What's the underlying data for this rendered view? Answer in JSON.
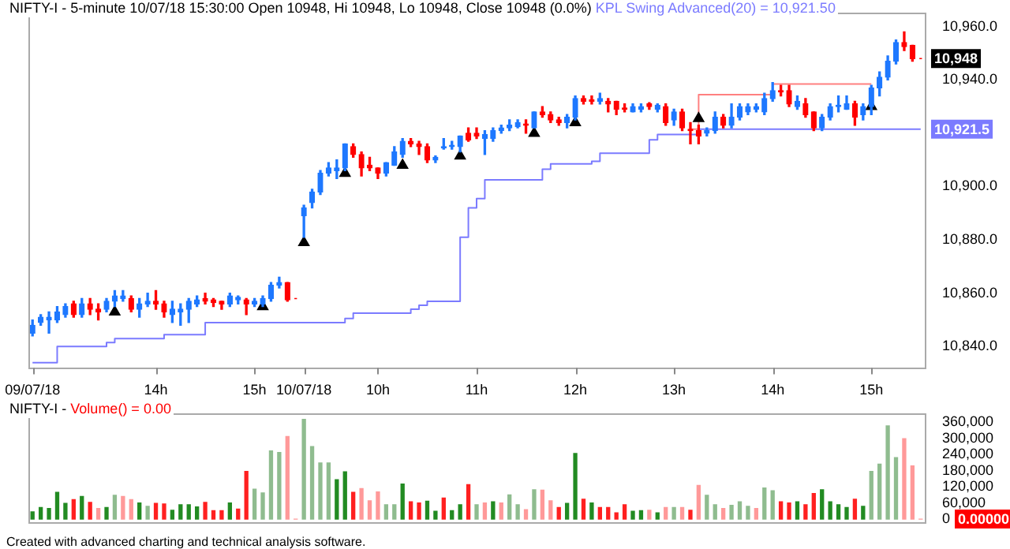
{
  "chart_data": [
    {
      "type": "candlestick",
      "title": "NIFTY-I - 5-minute 10/07/18 15:30:00 Open 10948, Hi 10948, Lo 10948, Close 10948 (0.0%)",
      "categories": [
        "09/07/18",
        null,
        null,
        null,
        null,
        null,
        null,
        null,
        null,
        null,
        null,
        null,
        null,
        null,
        null,
        "14h",
        null,
        null,
        null,
        null,
        null,
        null,
        null,
        null,
        null,
        null,
        null,
        "15h",
        null,
        null,
        null,
        null,
        null,
        "10/07/18",
        null,
        null,
        null,
        null,
        null,
        null,
        null,
        null,
        "10h",
        null,
        null,
        null,
        null,
        null,
        null,
        null,
        null,
        null,
        null,
        null,
        "11h",
        null,
        null,
        null,
        null,
        null,
        null,
        null,
        null,
        null,
        null,
        null,
        "12h",
        null,
        null,
        null,
        null,
        null,
        null,
        null,
        null,
        null,
        null,
        null,
        "13h",
        null,
        null,
        null,
        null,
        null,
        null,
        null,
        null,
        null,
        null,
        null,
        "14h",
        null,
        null,
        null,
        null,
        null,
        null,
        null,
        null,
        null,
        null,
        null,
        "15h",
        null,
        null,
        null,
        null,
        null,
        null
      ],
      "ohlc": [
        [
          10845,
          10850,
          10844,
          10848
        ],
        [
          10849,
          10852,
          10848,
          10851
        ],
        [
          10850,
          10853,
          10845,
          10851
        ],
        [
          10850,
          10855,
          10849,
          10853
        ],
        [
          10852,
          10856,
          10851,
          10855
        ],
        [
          10856,
          10857,
          10851,
          10852
        ],
        [
          10852,
          10858,
          10851,
          10856
        ],
        [
          10856,
          10858,
          10852,
          10854
        ],
        [
          10854,
          10856,
          10850,
          10853
        ],
        [
          10854,
          10858,
          10853,
          10857
        ],
        [
          10857,
          10861,
          10855,
          10859
        ],
        [
          10858,
          10861,
          10857,
          10859
        ],
        [
          10858,
          10859,
          10853,
          10854
        ],
        [
          10854,
          10858,
          10851,
          10856
        ],
        [
          10856,
          10860,
          10855,
          10857
        ],
        [
          10857,
          10861,
          10854,
          10856
        ],
        [
          10856,
          10857,
          10851,
          10853
        ],
        [
          10852,
          10857,
          10849,
          10854
        ],
        [
          10853,
          10856,
          10848,
          10854
        ],
        [
          10854,
          10858,
          10849,
          10857
        ],
        [
          10856,
          10859,
          10855,
          10857.5
        ],
        [
          10858,
          10860,
          10856,
          10857
        ],
        [
          10857.5,
          10858,
          10855,
          10856.5
        ],
        [
          10857,
          10857,
          10854,
          10856
        ],
        [
          10856,
          10860,
          10855,
          10859
        ],
        [
          10857.5,
          10859,
          10856,
          10858.5
        ],
        [
          10857.5,
          10858,
          10852,
          10856
        ],
        [
          10856,
          10858,
          10855,
          10857
        ],
        [
          10856,
          10859,
          10855,
          10858
        ],
        [
          10858,
          10864,
          10857,
          10863
        ],
        [
          10863,
          10866,
          10862,
          10864
        ],
        [
          10864,
          10864,
          10857,
          10857.5
        ],
        [
          10858,
          10858,
          10858,
          10858
        ],
        [
          10889,
          10893,
          10881,
          10892
        ],
        [
          10894,
          10899,
          10892,
          10898
        ],
        [
          10898,
          10906,
          10897,
          10905
        ],
        [
          10905,
          10909,
          10904,
          10907
        ],
        [
          10906,
          10910,
          10903,
          10907
        ],
        [
          10907,
          10916,
          10906,
          10916
        ],
        [
          10915,
          10916,
          10911,
          10912
        ],
        [
          10912,
          10913,
          10904,
          10907
        ],
        [
          10908,
          10911,
          10906,
          10907
        ],
        [
          10907,
          10907,
          10903,
          10905
        ],
        [
          10905,
          10909,
          10904,
          10909
        ],
        [
          10908,
          10915,
          10908,
          10913
        ],
        [
          10912,
          10918,
          10911,
          10917
        ],
        [
          10917,
          10918,
          10915,
          10916
        ],
        [
          10916,
          10917,
          10912,
          10915
        ],
        [
          10915,
          10916,
          10909,
          10910
        ],
        [
          10910,
          10911.5,
          10909,
          10911
        ],
        [
          10914.5,
          10918,
          10914,
          10915
        ],
        [
          10915,
          10917,
          10914,
          10915.5
        ],
        [
          10915,
          10919,
          10913,
          10919
        ],
        [
          10920,
          10922,
          10917,
          10917.5
        ],
        [
          10920,
          10922,
          10918,
          10919
        ],
        [
          10918,
          10921,
          10912,
          10919.5
        ],
        [
          10918,
          10922,
          10917,
          10921
        ],
        [
          10921,
          10923,
          10920,
          10922
        ],
        [
          10922,
          10925,
          10921,
          10923
        ],
        [
          10922.5,
          10925,
          10922,
          10924
        ],
        [
          10923.5,
          10925,
          10920,
          10923
        ],
        [
          10922,
          10928,
          10922,
          10928
        ],
        [
          10928,
          10930,
          10926,
          10927
        ],
        [
          10927,
          10928,
          10924,
          10925
        ],
        [
          10925,
          10926,
          10923,
          10924
        ],
        [
          10924,
          10927,
          10922,
          10926
        ],
        [
          10926,
          10934,
          10925,
          10933
        ],
        [
          10933,
          10934,
          10931,
          10932
        ],
        [
          10932.5,
          10934,
          10931,
          10932
        ],
        [
          10932,
          10935,
          10931,
          10933
        ],
        [
          10932,
          10933,
          10928,
          10931
        ],
        [
          10932,
          10932,
          10927,
          10929
        ],
        [
          10929.5,
          10931,
          10928,
          10929
        ],
        [
          10928,
          10931,
          10928,
          10930
        ],
        [
          10929,
          10931,
          10928,
          10930
        ],
        [
          10931,
          10931.5,
          10929,
          10930
        ],
        [
          10929,
          10931,
          10928,
          10930.5
        ],
        [
          10930,
          10931,
          10923,
          10924
        ],
        [
          10925,
          10929,
          10923,
          10928
        ],
        [
          10928,
          10929,
          10921,
          10922
        ],
        [
          10921.5,
          10924,
          10916,
          10921
        ],
        [
          10921,
          10923,
          10916,
          10919
        ],
        [
          10920,
          10922,
          10919,
          10921
        ],
        [
          10921,
          10928,
          10920,
          10926
        ],
        [
          10926,
          10927,
          10922,
          10923
        ],
        [
          10923,
          10931,
          10922,
          10926
        ],
        [
          10926,
          10931,
          10925,
          10930
        ],
        [
          10928,
          10931,
          10927,
          10930
        ],
        [
          10929,
          10931,
          10928,
          10930
        ],
        [
          10928,
          10935,
          10927,
          10933
        ],
        [
          10933,
          10939,
          10932,
          10936
        ],
        [
          10936,
          10938,
          10934,
          10935.5
        ],
        [
          10936,
          10938,
          10930,
          10931
        ],
        [
          10930,
          10934,
          10929,
          10932
        ],
        [
          10931,
          10933,
          10926,
          10927
        ],
        [
          10928,
          10928,
          10921,
          10922
        ],
        [
          10922,
          10927,
          10921,
          10926
        ],
        [
          10926,
          10931,
          10925,
          10930
        ],
        [
          10930,
          10934,
          10928,
          10930.5
        ],
        [
          10929,
          10934,
          10929,
          10931
        ],
        [
          10931,
          10932,
          10923,
          10926
        ],
        [
          10927,
          10931,
          10925,
          10930
        ],
        [
          10930,
          10938,
          10927,
          10937
        ],
        [
          10937,
          10943,
          10934,
          10941
        ],
        [
          10941,
          10949,
          10940,
          10947
        ],
        [
          10947,
          10955,
          10946,
          10954
        ],
        [
          10954,
          10958,
          10951,
          10952.5
        ],
        [
          10953,
          10953,
          10947,
          10948
        ],
        [
          10948,
          10948,
          10948,
          10948
        ]
      ],
      "colors": [
        "#1e78ff",
        "#1e78ff",
        "#1e78ff",
        "#1e78ff",
        "#1e78ff",
        "#ff0000",
        "#1e78ff",
        "#ff0000",
        "#ff0000",
        "#1e78ff",
        "#1e78ff",
        "#1e78ff",
        "#ff0000",
        "#1e78ff",
        "#1e78ff",
        "#ff0000",
        "#ff0000",
        "#1e78ff",
        "#1e78ff",
        "#1e78ff",
        "#1e78ff",
        "#ff0000",
        "#ff0000",
        "#ff0000",
        "#1e78ff",
        "#1e78ff",
        "#ff0000",
        "#1e78ff",
        "#1e78ff",
        "#1e78ff",
        "#1e78ff",
        "#ff0000",
        "#ff0000",
        "#1e78ff",
        "#1e78ff",
        "#1e78ff",
        "#1e78ff",
        "#1e78ff",
        "#1e78ff",
        "#ff0000",
        "#ff0000",
        "#ff0000",
        "#ff0000",
        "#1e78ff",
        "#1e78ff",
        "#1e78ff",
        "#ff0000",
        "#ff0000",
        "#ff0000",
        "#1e78ff",
        "#1e78ff",
        "#1e78ff",
        "#1e78ff",
        "#ff0000",
        "#ff0000",
        "#1e78ff",
        "#1e78ff",
        "#1e78ff",
        "#1e78ff",
        "#1e78ff",
        "#ff0000",
        "#1e78ff",
        "#ff0000",
        "#ff0000",
        "#ff0000",
        "#1e78ff",
        "#1e78ff",
        "#ff0000",
        "#ff0000",
        "#1e78ff",
        "#ff0000",
        "#ff0000",
        "#ff0000",
        "#1e78ff",
        "#1e78ff",
        "#ff0000",
        "#1e78ff",
        "#ff0000",
        "#1e78ff",
        "#ff0000",
        "#ff0000",
        "#ff0000",
        "#1e78ff",
        "#1e78ff",
        "#ff0000",
        "#1e78ff",
        "#1e78ff",
        "#1e78ff",
        "#1e78ff",
        "#1e78ff",
        "#1e78ff",
        "#ff0000",
        "#ff0000",
        "#1e78ff",
        "#ff0000",
        "#ff0000",
        "#1e78ff",
        "#1e78ff",
        "#1e78ff",
        "#1e78ff",
        "#ff0000",
        "#1e78ff",
        "#1e78ff",
        "#1e78ff",
        "#1e78ff",
        "#1e78ff",
        "#ff0000",
        "#ff0000",
        "#ff0000"
      ],
      "series": [
        {
          "type": "step",
          "name": "KPL Swing Advanced(20) = 10,921.50",
          "color": "#7b7bff",
          "values": [
            10834,
            10834,
            10834,
            10840,
            10840,
            10840,
            10840,
            10840,
            10840,
            10841.5,
            10843,
            10843,
            10843,
            10843,
            10843,
            10843,
            10844.5,
            10844.5,
            10844.5,
            10844.5,
            10844.5,
            10849,
            10849,
            10849,
            10849,
            10849,
            10849,
            10849,
            10849,
            10849,
            10849,
            10849,
            10849,
            10849,
            10849,
            10849,
            10849,
            10849,
            10850.5,
            10852.5,
            10852.5,
            10852.5,
            10852.5,
            10852.5,
            10852.5,
            10852.5,
            10854,
            10855.5,
            10857,
            10857,
            10857,
            10857,
            10881,
            10892,
            10895.5,
            10902.5,
            10902.5,
            10902.5,
            10902.5,
            10902.5,
            10902.5,
            10902.5,
            10906.5,
            10908.5,
            10908.5,
            10908.5,
            10908.5,
            10908.5,
            10909.5,
            10912.5,
            10912.5,
            10912.5,
            10912.5,
            10912.5,
            10912.5,
            10917.5,
            10919.5,
            10919.5,
            10919.5,
            10919.5,
            10919.5,
            10921.5,
            10921.5,
            10921.5,
            10921.5,
            10921.5,
            10921.5,
            10921.5,
            10921.5,
            10921.5,
            10921.5,
            10921.5,
            10921.5,
            10921.5,
            10921.5,
            10921.5,
            10921.5,
            10921.5,
            10921.5,
            10921.5,
            10921.5,
            10921.5,
            10921.5,
            10921.5,
            10921.5,
            10921.5,
            10921.5,
            10921.5,
            10921.5
          ]
        },
        {
          "type": "step",
          "color": "#ff8080",
          "values": [
            null,
            null,
            null,
            null,
            null,
            null,
            null,
            null,
            null,
            null,
            null,
            null,
            null,
            null,
            null,
            null,
            null,
            null,
            null,
            null,
            null,
            null,
            null,
            null,
            null,
            null,
            null,
            null,
            null,
            null,
            null,
            null,
            null,
            null,
            null,
            null,
            null,
            null,
            null,
            null,
            null,
            null,
            null,
            null,
            null,
            null,
            null,
            null,
            null,
            null,
            null,
            null,
            null,
            null,
            null,
            null,
            null,
            null,
            null,
            null,
            null,
            null,
            null,
            null,
            null,
            null,
            null,
            null,
            null,
            null,
            null,
            null,
            null,
            null,
            null,
            null,
            null,
            null,
            null,
            null,
            10921.5,
            10934.5,
            10934.5,
            10934.5,
            10934.5,
            10934.5,
            10934.5,
            10934.5,
            10934.5,
            10934.5,
            10938.5,
            10938.5,
            10938.5,
            10938.5,
            10938.5,
            10938.5,
            10938.5,
            10938.5,
            10938.5,
            10938.5,
            10938.5,
            10938.5,
            10938.5,
            null,
            null,
            null,
            null,
            null,
            null
          ]
        },
        {
          "type": "scatter",
          "marker": "triangle",
          "color": "#000000",
          "values": [
            null,
            null,
            null,
            null,
            null,
            null,
            null,
            null,
            null,
            null,
            10853,
            null,
            null,
            null,
            null,
            null,
            null,
            null,
            null,
            null,
            null,
            null,
            null,
            null,
            null,
            null,
            null,
            null,
            10855,
            null,
            null,
            null,
            null,
            10879,
            null,
            null,
            null,
            null,
            10905,
            null,
            null,
            null,
            null,
            null,
            null,
            10908,
            null,
            null,
            null,
            null,
            null,
            null,
            10911.5,
            null,
            null,
            null,
            null,
            null,
            null,
            null,
            null,
            10920,
            null,
            null,
            null,
            null,
            10924,
            null,
            null,
            null,
            null,
            null,
            null,
            null,
            null,
            null,
            null,
            null,
            null,
            null,
            null,
            10925.5,
            null,
            null,
            null,
            null,
            null,
            null,
            null,
            null,
            null,
            null,
            null,
            null,
            null,
            null,
            null,
            null,
            null,
            null,
            null,
            null,
            10930,
            null,
            null,
            null,
            null,
            null,
            null
          ]
        }
      ],
      "ylim": [
        10832,
        10965
      ],
      "yticks": [
        {
          "value": 10840,
          "label": "10,840.0"
        },
        {
          "value": 10860,
          "label": "10,860.0"
        },
        {
          "value": 10880,
          "label": "10,880.0"
        },
        {
          "value": 10900,
          "label": "10,900.0"
        },
        {
          "value": 10940,
          "label": "10,940.0"
        },
        {
          "value": 10960,
          "label": "10,960.0"
        }
      ],
      "annotations": [
        "10,948",
        "10,921.5"
      ]
    },
    {
      "type": "bar",
      "title": "NIFTY-I -",
      "tick_labels": "y",
      "categories": [
        null,
        null,
        null,
        null,
        null,
        null,
        null,
        null,
        null,
        null,
        null,
        null,
        null,
        null,
        null,
        null,
        null,
        null,
        null,
        null,
        null,
        null,
        null,
        null,
        null,
        null,
        null,
        null,
        null,
        null,
        null,
        null,
        null,
        null,
        null,
        null,
        null,
        null,
        null,
        null,
        null,
        null,
        null,
        null,
        null,
        null,
        null,
        null,
        null,
        null,
        null,
        null,
        null,
        null,
        null,
        null,
        null,
        null,
        null,
        null,
        null,
        null,
        null,
        null,
        null,
        null,
        null,
        null,
        null,
        null,
        null,
        null,
        null,
        null,
        null,
        null,
        null,
        null,
        null,
        null,
        null,
        null,
        null,
        null,
        null,
        null,
        null,
        null,
        null,
        null,
        null,
        null,
        null,
        null,
        null,
        null,
        null,
        null,
        null,
        null,
        null,
        null,
        null,
        null,
        null,
        null,
        null,
        null,
        null
      ],
      "series": [
        {
          "name": "Volume() = 0.00",
          "color": "#ff0000",
          "colors": [
            "#228b22",
            "#228b22",
            "#228b22",
            "#228b22",
            "#228b22",
            "#ff2020",
            "#228b22",
            "#ff2020",
            "#ff9999",
            "#228b22",
            "#8fbc8f",
            "#ff9999",
            "#ff9999",
            "#228b22",
            "#8fbc8f",
            "#ff2020",
            "#ff2020",
            "#228b22",
            "#228b22",
            "#228b22",
            "#228b22",
            "#ff2020",
            "#ff2020",
            "#ff2020",
            "#228b22",
            "#ff2020",
            "#ff2020",
            "#8fbc8f",
            "#8fbc8f",
            "#8fbc8f",
            "#8fbc8f",
            "#ff9999",
            "#ff9999",
            "#8fbc8f",
            "#8fbc8f",
            "#8fbc8f",
            "#8fbc8f",
            "#228b22",
            "#228b22",
            "#ff2020",
            "#ff9999",
            "#ff9999",
            "#ff9999",
            "#8fbc8f",
            "#8fbc8f",
            "#228b22",
            "#ff2020",
            "#ff2020",
            "#228b22",
            "#228b22",
            "#ff2020",
            "#228b22",
            "#228b22",
            "#ff2020",
            "#8fbc8f",
            "#ff9999",
            "#228b22",
            "#ff9999",
            "#8fbc8f",
            "#8fbc8f",
            "#ff9999",
            "#8fbc8f",
            "#ff9999",
            "#ff9999",
            "#ff2020",
            "#228b22",
            "#228b22",
            "#ff2020",
            "#228b22",
            "#ff2020",
            "#ff2020",
            "#ff2020",
            "#ff2020",
            "#228b22",
            "#228b22",
            "#ff9999",
            "#228b22",
            "#ff9999",
            "#8fbc8f",
            "#ff9999",
            "#ff2020",
            "#ff9999",
            "#8fbc8f",
            "#8fbc8f",
            "#ff9999",
            "#8fbc8f",
            "#8fbc8f",
            "#8fbc8f",
            "#ff9999",
            "#8fbc8f",
            "#8fbc8f",
            "#ff2020",
            "#ff2020",
            "#228b22",
            "#ff2020",
            "#ff2020",
            "#228b22",
            "#228b22",
            "#228b22",
            "#228b22",
            "#ff2020",
            "#228b22",
            "#8fbc8f",
            "#8fbc8f",
            "#8fbc8f",
            "#8fbc8f",
            "#ff9999",
            "#ff9999",
            "#ff9999"
          ],
          "values": [
            27000,
            43000,
            39000,
            99000,
            58000,
            72000,
            84000,
            62000,
            39000,
            43000,
            88000,
            84000,
            72000,
            60000,
            47000,
            58000,
            56000,
            33000,
            53000,
            53000,
            45000,
            62000,
            31000,
            31000,
            60000,
            37000,
            177000,
            111000,
            97000,
            253000,
            247000,
            306000,
            0,
            370000,
            269000,
            208000,
            208000,
            146000,
            175000,
            99000,
            113000,
            68000,
            101000,
            53000,
            53000,
            130000,
            64000,
            60000,
            66000,
            29000,
            78000,
            31000,
            53000,
            128000,
            53000,
            60000,
            64000,
            60000,
            90000,
            53000,
            35000,
            109000,
            107000,
            68000,
            43000,
            58000,
            243000,
            74000,
            60000,
            43000,
            43000,
            23000,
            53000,
            29000,
            31000,
            33000,
            23000,
            43000,
            43000,
            43000,
            33000,
            125000,
            88000,
            53000,
            39000,
            51000,
            64000,
            47000,
            39000,
            115000,
            105000,
            64000,
            60000,
            64000,
            53000,
            95000,
            109000,
            64000,
            53000,
            43000,
            74000,
            47000,
            177000,
            204000,
            346000,
            228000,
            298000,
            197000,
            0
          ]
        }
      ],
      "ylim": [
        -15000,
        390000
      ],
      "yticks": [
        {
          "value": 0,
          "label": "0"
        },
        {
          "value": 60000,
          "label": "60,000"
        },
        {
          "value": 120000,
          "label": "120,000"
        },
        {
          "value": 180000,
          "label": "180,000"
        },
        {
          "value": 240000,
          "label": "240,000"
        },
        {
          "value": 300000,
          "label": "300,000"
        },
        {
          "value": 360000,
          "label": "360,000"
        }
      ],
      "annotations": [
        "0.00000",
        "Created with advanced charting and technical analysis software."
      ]
    }
  ]
}
